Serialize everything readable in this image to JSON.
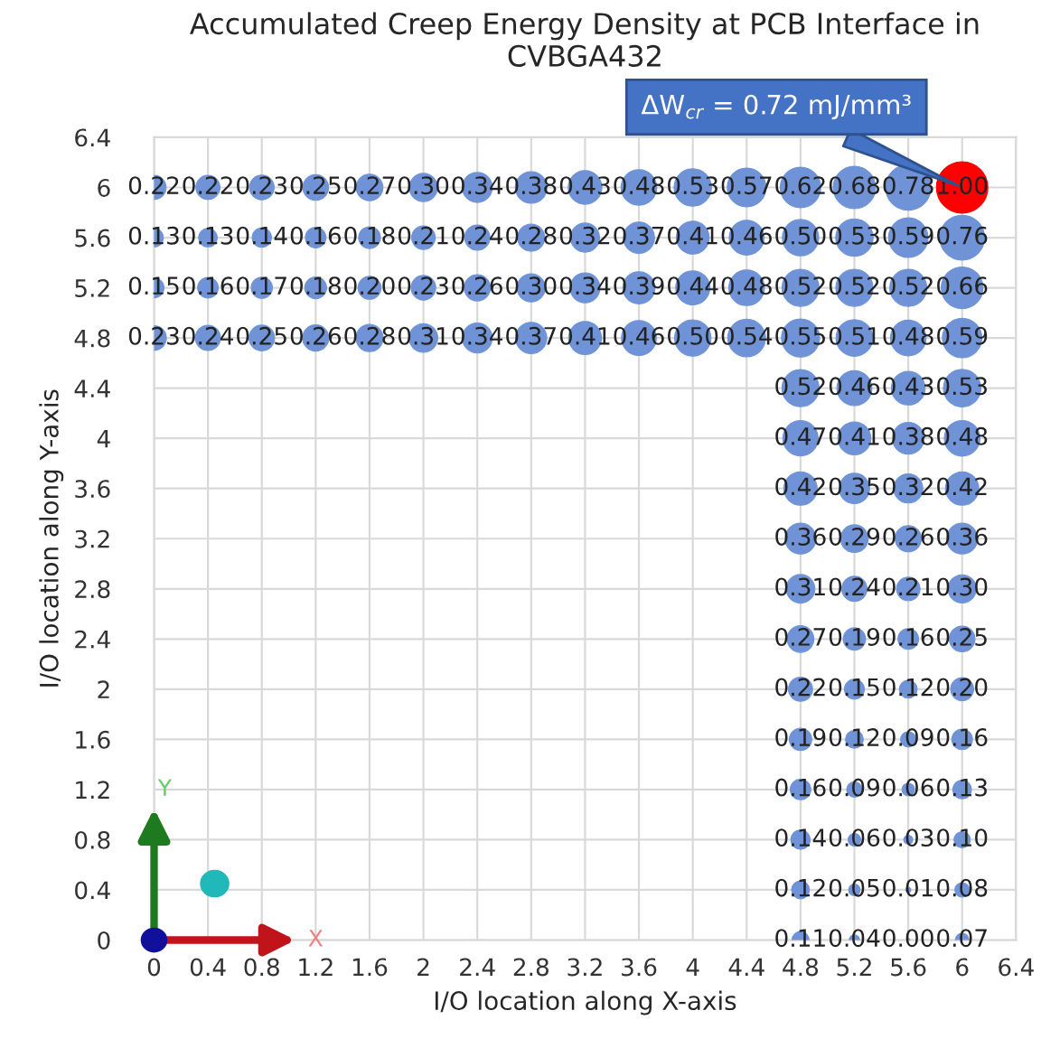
{
  "chart_data": {
    "type": "bubble",
    "title": "Accumulated Creep Energy Density at PCB Interface in CVBGA432",
    "xlabel": "I/O location along X-axis",
    "ylabel": "I/O location along Y-axis",
    "xlim": [
      0,
      6.4
    ],
    "xticks": [
      0,
      0.4,
      0.8,
      1.2,
      1.6,
      2,
      2.4,
      2.8,
      3.2,
      3.6,
      4,
      4.4,
      4.8,
      5.2,
      5.6,
      6,
      6.4
    ],
    "ylim": [
      0,
      6.4
    ],
    "yticks": [
      0,
      0.4,
      0.8,
      1.2,
      1.6,
      2,
      2.4,
      2.8,
      3.2,
      3.6,
      4,
      4.4,
      4.8,
      5.2,
      5.6,
      6,
      6.4
    ],
    "grid": true,
    "legend": false,
    "annotations": [
      {
        "text": "ΔW$_{cr}$ = 0.72 mJ/mm³",
        "x": 6,
        "y": 6
      },
      "X",
      "Y"
    ],
    "series": [
      {
        "color": "#6f93d6",
        "x": [
          0,
          0.4,
          0.8,
          1.2,
          1.6,
          2,
          2.4,
          2.8,
          3.2,
          3.6,
          4,
          4.4,
          4.8,
          5.2,
          5.6,
          0,
          0.4,
          0.8,
          1.2,
          1.6,
          2,
          2.4,
          2.8,
          3.2,
          3.6,
          4,
          4.4,
          4.8,
          5.2,
          5.6,
          6,
          0,
          0.4,
          0.8,
          1.2,
          1.6,
          2,
          2.4,
          2.8,
          3.2,
          3.6,
          4,
          4.4,
          4.8,
          5.2,
          5.6,
          6,
          0,
          0.4,
          0.8,
          1.2,
          1.6,
          2,
          2.4,
          2.8,
          3.2,
          3.6,
          4,
          4.4,
          4.8,
          5.2,
          5.6,
          6,
          4.8,
          5.2,
          5.6,
          6,
          4.8,
          5.2,
          5.6,
          6,
          4.8,
          5.2,
          5.6,
          6,
          4.8,
          5.2,
          5.6,
          6,
          4.8,
          5.2,
          5.6,
          6,
          4.8,
          5.2,
          5.6,
          6,
          4.8,
          5.2,
          5.6,
          6,
          4.8,
          5.2,
          5.6,
          6,
          4.8,
          5.2,
          5.6,
          6,
          4.8,
          5.2,
          5.6,
          6,
          4.8,
          5.2,
          5.6,
          6,
          4.8,
          5.2,
          5.6,
          6
        ],
        "values": [
          6,
          6,
          6,
          6,
          6,
          6,
          6,
          6,
          6,
          6,
          6,
          6,
          6,
          6,
          6,
          5.6,
          5.6,
          5.6,
          5.6,
          5.6,
          5.6,
          5.6,
          5.6,
          5.6,
          5.6,
          5.6,
          5.6,
          5.6,
          5.6,
          5.6,
          5.6,
          5.2,
          5.2,
          5.2,
          5.2,
          5.2,
          5.2,
          5.2,
          5.2,
          5.2,
          5.2,
          5.2,
          5.2,
          5.2,
          5.2,
          5.2,
          5.2,
          4.8,
          4.8,
          4.8,
          4.8,
          4.8,
          4.8,
          4.8,
          4.8,
          4.8,
          4.8,
          4.8,
          4.8,
          4.8,
          4.8,
          4.8,
          4.8,
          4.4,
          4.4,
          4.4,
          4.4,
          4,
          4,
          4,
          4,
          3.6,
          3.6,
          3.6,
          3.6,
          3.2,
          3.2,
          3.2,
          3.2,
          2.8,
          2.8,
          2.8,
          2.8,
          2.4,
          2.4,
          2.4,
          2.4,
          2,
          2,
          2,
          2,
          1.6,
          1.6,
          1.6,
          1.6,
          1.2,
          1.2,
          1.2,
          1.2,
          0.8,
          0.8,
          0.8,
          0.8,
          0.4,
          0.4,
          0.4,
          0.4,
          0,
          0,
          0,
          0
        ],
        "sizes": [
          0.22,
          0.22,
          0.23,
          0.25,
          0.27,
          0.3,
          0.34,
          0.38,
          0.43,
          0.48,
          0.53,
          0.57,
          0.62,
          0.68,
          0.78,
          0.13,
          0.13,
          0.14,
          0.16,
          0.18,
          0.21,
          0.24,
          0.28,
          0.32,
          0.37,
          0.41,
          0.46,
          0.5,
          0.53,
          0.59,
          0.76,
          0.15,
          0.16,
          0.17,
          0.18,
          0.2,
          0.23,
          0.26,
          0.3,
          0.34,
          0.39,
          0.44,
          0.48,
          0.52,
          0.52,
          0.52,
          0.66,
          0.23,
          0.24,
          0.25,
          0.26,
          0.28,
          0.31,
          0.34,
          0.37,
          0.41,
          0.46,
          0.5,
          0.54,
          0.55,
          0.51,
          0.48,
          0.59,
          0.52,
          0.46,
          0.43,
          0.53,
          0.47,
          0.41,
          0.38,
          0.48,
          0.42,
          0.35,
          0.32,
          0.42,
          0.36,
          0.29,
          0.26,
          0.36,
          0.31,
          0.24,
          0.21,
          0.3,
          0.27,
          0.19,
          0.16,
          0.25,
          0.22,
          0.15,
          0.12,
          0.2,
          0.19,
          0.12,
          0.09,
          0.16,
          0.16,
          0.09,
          0.06,
          0.13,
          0.14,
          0.06,
          0.03,
          0.1,
          0.12,
          0.05,
          0.01,
          0.08,
          0.11,
          0.04,
          0.004,
          0.07
        ],
        "value_labels": [
          "0.22",
          "0.22",
          "0.23",
          "0.25",
          "0.27",
          "0.30",
          "0.34",
          "0.38",
          "0.43",
          "0.48",
          "0.53",
          "0.57",
          "0.62",
          "0.68",
          "0.78",
          "0.13",
          "0.13",
          "0.14",
          "0.16",
          "0.18",
          "0.21",
          "0.24",
          "0.28",
          "0.32",
          "0.37",
          "0.41",
          "0.46",
          "0.50",
          "0.53",
          "0.59",
          "0.76",
          "0.15",
          "0.16",
          "0.17",
          "0.18",
          "0.20",
          "0.23",
          "0.26",
          "0.30",
          "0.34",
          "0.39",
          "0.44",
          "0.48",
          "0.52",
          "0.52",
          "0.52",
          "0.66",
          "0.23",
          "0.24",
          "0.25",
          "0.26",
          "0.28",
          "0.31",
          "0.34",
          "0.37",
          "0.41",
          "0.46",
          "0.50",
          "0.54",
          "0.55",
          "0.51",
          "0.48",
          "0.59",
          "0.52",
          "0.46",
          "0.43",
          "0.53",
          "0.47",
          "0.41",
          "0.38",
          "0.48",
          "0.42",
          "0.35",
          "0.32",
          "0.42",
          "0.36",
          "0.29",
          "0.26",
          "0.36",
          "0.31",
          "0.24",
          "0.21",
          "0.30",
          "0.27",
          "0.19",
          "0.16",
          "0.25",
          "0.22",
          "0.15",
          "0.12",
          "0.20",
          "0.19",
          "0.12",
          "0.09",
          "0.16",
          "0.16",
          "0.09",
          "0.06",
          "0.13",
          "0.14",
          "0.06",
          "0.03",
          "0.10",
          "0.12",
          "0.05",
          "0.01",
          "0.08",
          "0.11",
          "0.04",
          "0.00",
          "0.07"
        ]
      },
      {
        "color": "#ff0000",
        "x": [
          6
        ],
        "values": [
          6
        ],
        "sizes": [
          1.0
        ],
        "value_labels": [
          "1.00"
        ]
      }
    ]
  }
}
